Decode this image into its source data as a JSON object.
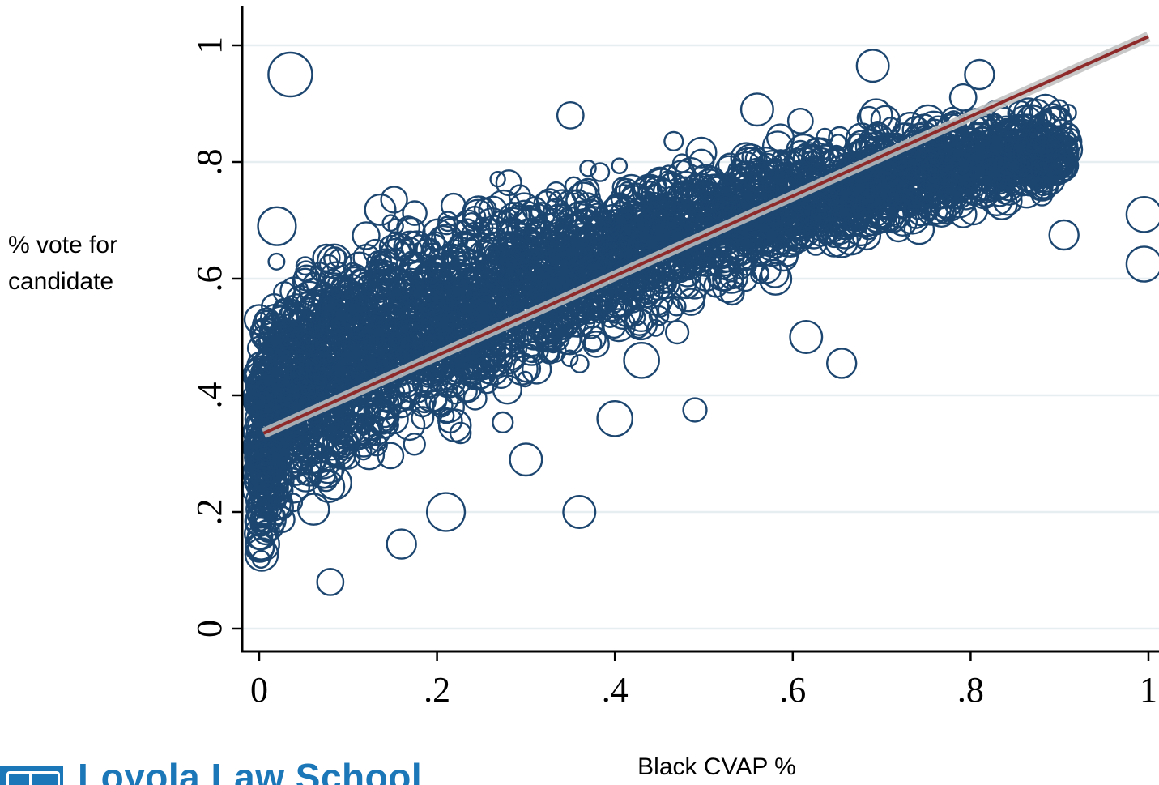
{
  "chart_data": {
    "type": "scatter",
    "title": "",
    "xlabel": "Black CVAP %",
    "ylabel_lines": [
      "% vote for",
      "candidate"
    ],
    "xlim": [
      -0.01,
      1.005
    ],
    "ylim": [
      -0.03,
      1.07
    ],
    "x_ticks": [
      {
        "value": 0,
        "label": "0"
      },
      {
        "value": 0.2,
        "label": ".2"
      },
      {
        "value": 0.4,
        "label": ".4"
      },
      {
        "value": 0.6,
        "label": ".6"
      },
      {
        "value": 0.8,
        "label": ".8"
      },
      {
        "value": 1,
        "label": "1"
      }
    ],
    "y_ticks": [
      {
        "value": 0,
        "label": "0"
      },
      {
        "value": 0.2,
        "label": ".2"
      },
      {
        "value": 0.4,
        "label": ".4"
      },
      {
        "value": 0.6,
        "label": ".6"
      },
      {
        "value": 0.8,
        "label": ".8"
      },
      {
        "value": 1,
        "label": "1"
      }
    ],
    "grid": true,
    "marker": "hollow-circle",
    "point_color": "#1c4670",
    "fit_line_color": "#8f2a2a",
    "ci_band_color": "#bfbfbf",
    "fit_line": {
      "x": [
        0.005,
        1.0
      ],
      "y": [
        0.335,
        1.015
      ]
    },
    "bulk_cloud": {
      "x_range": [
        0.0,
        0.91
      ],
      "mean_curve": [
        [
          0.0,
          0.33
        ],
        [
          0.05,
          0.42
        ],
        [
          0.1,
          0.47
        ],
        [
          0.2,
          0.53
        ],
        [
          0.3,
          0.59
        ],
        [
          0.4,
          0.64
        ],
        [
          0.5,
          0.69
        ],
        [
          0.6,
          0.73
        ],
        [
          0.7,
          0.77
        ],
        [
          0.8,
          0.8
        ],
        [
          0.9,
          0.82
        ]
      ],
      "spread_curve": [
        [
          0.0,
          0.12
        ],
        [
          0.1,
          0.12
        ],
        [
          0.2,
          0.1
        ],
        [
          0.4,
          0.08
        ],
        [
          0.6,
          0.06
        ],
        [
          0.8,
          0.05
        ],
        [
          0.9,
          0.04
        ]
      ]
    },
    "notable_points": [
      {
        "x": 0.035,
        "y": 0.95,
        "size": 30
      },
      {
        "x": 0.36,
        "y": 0.2,
        "size": 22
      },
      {
        "x": 0.49,
        "y": 0.375,
        "size": 16
      },
      {
        "x": 0.615,
        "y": 0.5,
        "size": 22
      },
      {
        "x": 0.655,
        "y": 0.455,
        "size": 20
      },
      {
        "x": 0.905,
        "y": 0.675,
        "size": 20
      },
      {
        "x": 0.995,
        "y": 0.71,
        "size": 24
      },
      {
        "x": 0.995,
        "y": 0.625,
        "size": 24
      },
      {
        "x": 0.16,
        "y": 0.145,
        "size": 20
      },
      {
        "x": 0.21,
        "y": 0.2,
        "size": 26
      },
      {
        "x": 0.3,
        "y": 0.29,
        "size": 22
      },
      {
        "x": 0.35,
        "y": 0.88,
        "size": 18
      },
      {
        "x": 0.56,
        "y": 0.89,
        "size": 22
      },
      {
        "x": 0.69,
        "y": 0.965,
        "size": 22
      },
      {
        "x": 0.81,
        "y": 0.95,
        "size": 20
      },
      {
        "x": 0.08,
        "y": 0.08,
        "size": 18
      },
      {
        "x": 0.0,
        "y": 0.53,
        "size": 20
      },
      {
        "x": 0.02,
        "y": 0.69,
        "size": 26
      },
      {
        "x": 0.4,
        "y": 0.36,
        "size": 24
      },
      {
        "x": 0.43,
        "y": 0.46,
        "size": 24
      }
    ]
  },
  "logo": {
    "text": "Loyola Law School"
  }
}
